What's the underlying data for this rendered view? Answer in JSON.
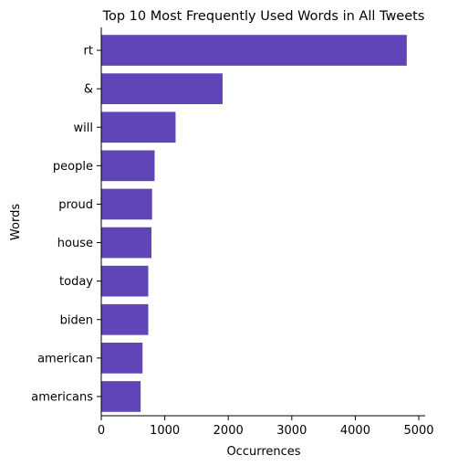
{
  "chart_data": {
    "type": "bar",
    "orientation": "horizontal",
    "title": "Top 10 Most Frequently Used Words in All Tweets",
    "xlabel": "Occurrences",
    "ylabel": "Words",
    "categories": [
      "rt",
      "&",
      "will",
      "people",
      "proud",
      "house",
      "today",
      "biden",
      "american",
      "americans"
    ],
    "values": [
      4810,
      1910,
      1170,
      840,
      800,
      790,
      740,
      740,
      650,
      620
    ],
    "xlim": [
      0,
      5100
    ],
    "xticks": [
      0,
      1000,
      2000,
      3000,
      4000,
      5000
    ],
    "xtick_labels": [
      "0",
      "1000",
      "2000",
      "3000",
      "4000",
      "5000"
    ],
    "grid": false,
    "bar_color": "#5f45b8"
  }
}
